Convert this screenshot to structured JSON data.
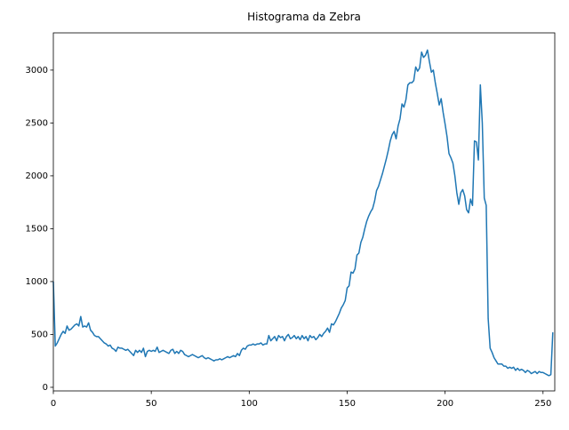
{
  "chart_data": {
    "type": "line",
    "title": "Histograma da Zebra",
    "x": [
      0,
      1,
      2,
      3,
      4,
      5,
      6,
      7,
      8,
      9,
      10,
      11,
      12,
      13,
      14,
      15,
      16,
      17,
      18,
      19,
      20,
      21,
      22,
      23,
      24,
      25,
      26,
      27,
      28,
      29,
      30,
      31,
      32,
      33,
      34,
      35,
      36,
      37,
      38,
      39,
      40,
      41,
      42,
      43,
      44,
      45,
      46,
      47,
      48,
      49,
      50,
      51,
      52,
      53,
      54,
      55,
      56,
      57,
      58,
      59,
      60,
      61,
      62,
      63,
      64,
      65,
      66,
      67,
      68,
      69,
      70,
      71,
      72,
      73,
      74,
      75,
      76,
      77,
      78,
      79,
      80,
      81,
      82,
      83,
      84,
      85,
      86,
      87,
      88,
      89,
      90,
      91,
      92,
      93,
      94,
      95,
      96,
      97,
      98,
      99,
      100,
      101,
      102,
      103,
      104,
      105,
      106,
      107,
      108,
      109,
      110,
      111,
      112,
      113,
      114,
      115,
      116,
      117,
      118,
      119,
      120,
      121,
      122,
      123,
      124,
      125,
      126,
      127,
      128,
      129,
      130,
      131,
      132,
      133,
      134,
      135,
      136,
      137,
      138,
      139,
      140,
      141,
      142,
      143,
      144,
      145,
      146,
      147,
      148,
      149,
      150,
      151,
      152,
      153,
      154,
      155,
      156,
      157,
      158,
      159,
      160,
      161,
      162,
      163,
      164,
      165,
      166,
      167,
      168,
      169,
      170,
      171,
      172,
      173,
      174,
      175,
      176,
      177,
      178,
      179,
      180,
      181,
      182,
      183,
      184,
      185,
      186,
      187,
      188,
      189,
      190,
      191,
      192,
      193,
      194,
      195,
      196,
      197,
      198,
      199,
      200,
      201,
      202,
      203,
      204,
      205,
      206,
      207,
      208,
      209,
      210,
      211,
      212,
      213,
      214,
      215,
      216,
      217,
      218,
      219,
      220,
      221,
      222,
      223,
      224,
      225,
      226,
      227,
      228,
      229,
      230,
      231,
      232,
      233,
      234,
      235,
      236,
      237,
      238,
      239,
      240,
      241,
      242,
      243,
      244,
      245,
      246,
      247,
      248,
      249,
      250,
      251,
      252,
      253,
      254,
      255
    ],
    "series": [
      {
        "color": "#1f77b4",
        "values": [
          1000,
          390,
          420,
          460,
          500,
          530,
          510,
          580,
          540,
          550,
          570,
          590,
          600,
          580,
          670,
          570,
          580,
          570,
          610,
          540,
          520,
          490,
          480,
          480,
          460,
          440,
          420,
          410,
          390,
          400,
          370,
          360,
          340,
          380,
          370,
          370,
          360,
          350,
          360,
          340,
          320,
          300,
          350,
          330,
          350,
          330,
          370,
          290,
          340,
          350,
          340,
          350,
          340,
          380,
          330,
          340,
          350,
          340,
          330,
          320,
          350,
          360,
          320,
          340,
          320,
          350,
          340,
          310,
          300,
          290,
          300,
          310,
          300,
          290,
          280,
          290,
          300,
          280,
          270,
          280,
          270,
          260,
          250,
          260,
          260,
          270,
          260,
          270,
          280,
          290,
          280,
          290,
          300,
          290,
          320,
          300,
          350,
          370,
          360,
          390,
          400,
          400,
          410,
          400,
          410,
          410,
          420,
          400,
          410,
          410,
          490,
          440,
          460,
          480,
          440,
          490,
          470,
          480,
          440,
          480,
          500,
          460,
          470,
          490,
          460,
          480,
          450,
          490,
          460,
          480,
          440,
          490,
          470,
          480,
          450,
          470,
          500,
          480,
          510,
          530,
          560,
          520,
          600,
          590,
          620,
          660,
          700,
          750,
          780,
          820,
          940,
          960,
          1090,
          1080,
          1120,
          1250,
          1270,
          1370,
          1420,
          1500,
          1570,
          1620,
          1660,
          1690,
          1760,
          1860,
          1900,
          1960,
          2020,
          2090,
          2160,
          2240,
          2330,
          2390,
          2420,
          2350,
          2470,
          2540,
          2680,
          2650,
          2720,
          2860,
          2880,
          2880,
          2900,
          3030,
          2990,
          3020,
          3170,
          3120,
          3140,
          3190,
          3080,
          2980,
          3000,
          2880,
          2780,
          2670,
          2730,
          2600,
          2490,
          2370,
          2210,
          2170,
          2120,
          2000,
          1840,
          1730,
          1840,
          1870,
          1810,
          1680,
          1650,
          1780,
          1720,
          2330,
          2320,
          2150,
          2860,
          2500,
          1790,
          1720,
          650,
          370,
          330,
          280,
          250,
          220,
          220,
          220,
          200,
          200,
          180,
          190,
          180,
          190,
          160,
          180,
          160,
          170,
          160,
          140,
          160,
          150,
          130,
          140,
          150,
          130,
          150,
          140,
          140,
          130,
          120,
          110,
          120,
          520
        ]
      }
    ],
    "xlim": [
      0,
      256
    ],
    "xticks": [
      0,
      50,
      100,
      150,
      200,
      250
    ],
    "ylim": [
      -34,
      3352
    ],
    "yticks": [
      0,
      500,
      1000,
      1500,
      2000,
      2500,
      3000
    ],
    "grid": false
  }
}
